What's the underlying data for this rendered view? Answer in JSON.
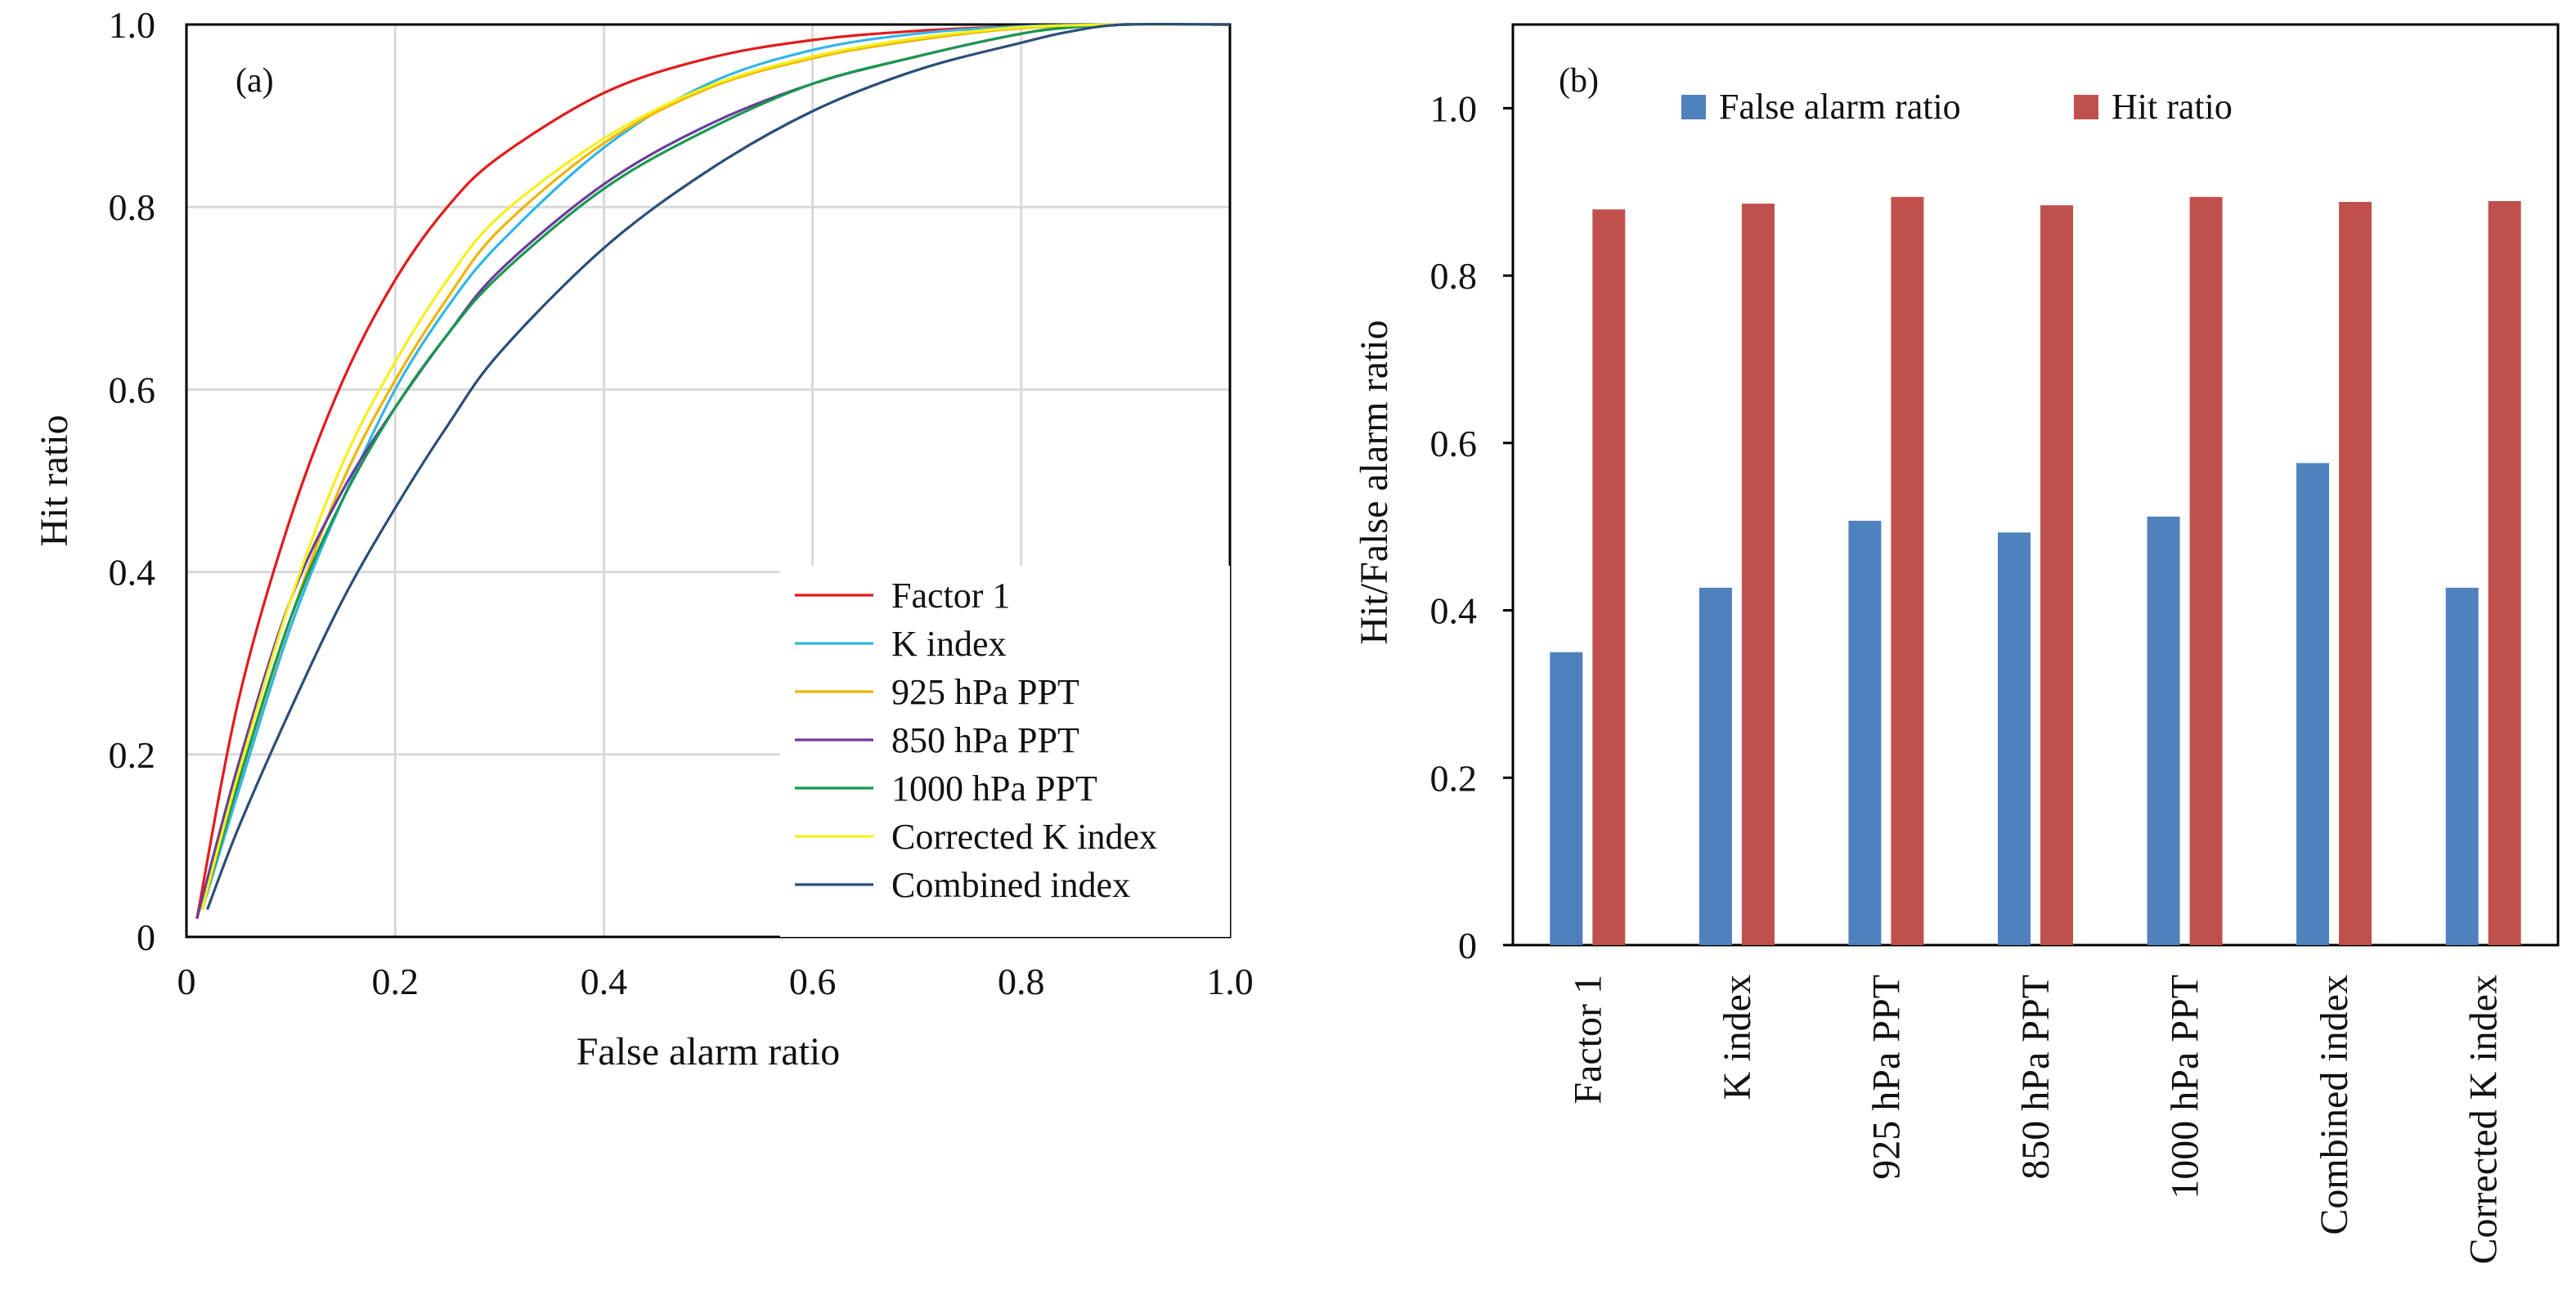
{
  "chart_data": [
    {
      "type": "line",
      "panel_label": "(a)",
      "title": "",
      "xlabel": "False alarm ratio",
      "ylabel": "Hit  ratio",
      "xlim": [
        0,
        1.0
      ],
      "ylim": [
        0,
        1.0
      ],
      "xticks": [
        "0",
        "0.2",
        "0.4",
        "0.6",
        "0.8",
        "1.0"
      ],
      "yticks": [
        "0",
        "0.2",
        "0.4",
        "0.6",
        "0.8",
        "1.0"
      ],
      "grid": true,
      "legend_position": "bottom-right",
      "series": [
        {
          "name": "Factor 1",
          "color": "#e31a1c",
          "x": [
            0.01,
            0.05,
            0.1,
            0.15,
            0.2,
            0.25,
            0.3,
            0.4,
            0.5,
            0.6,
            0.7,
            0.8,
            0.9,
            1.0
          ],
          "y": [
            0.02,
            0.26,
            0.46,
            0.61,
            0.72,
            0.8,
            0.855,
            0.925,
            0.963,
            0.983,
            0.993,
            0.998,
            1.0,
            1.0
          ]
        },
        {
          "name": "K index",
          "color": "#33b5e5",
          "x": [
            0.015,
            0.05,
            0.1,
            0.15,
            0.2,
            0.25,
            0.3,
            0.4,
            0.5,
            0.6,
            0.7,
            0.8,
            0.9,
            1.0
          ],
          "y": [
            0.03,
            0.16,
            0.34,
            0.48,
            0.6,
            0.69,
            0.76,
            0.865,
            0.935,
            0.972,
            0.99,
            0.998,
            1.0,
            1.0
          ]
        },
        {
          "name": "925 hPa PPT",
          "color": "#f0b400",
          "x": [
            0.015,
            0.05,
            0.1,
            0.15,
            0.2,
            0.25,
            0.3,
            0.4,
            0.5,
            0.6,
            0.7,
            0.8,
            0.9,
            1.0
          ],
          "y": [
            0.03,
            0.17,
            0.35,
            0.5,
            0.61,
            0.7,
            0.775,
            0.87,
            0.93,
            0.963,
            0.983,
            0.996,
            1.0,
            1.0
          ]
        },
        {
          "name": "850 hPa PPT",
          "color": "#6a3d9a",
          "x": [
            0.01,
            0.05,
            0.1,
            0.15,
            0.2,
            0.25,
            0.3,
            0.4,
            0.5,
            0.6,
            0.7,
            0.8,
            0.85,
            0.9,
            1.0
          ],
          "y": [
            0.02,
            0.19,
            0.37,
            0.49,
            0.58,
            0.66,
            0.73,
            0.825,
            0.89,
            0.935,
            0.965,
            0.99,
            0.997,
            1.0,
            1.0
          ]
        },
        {
          "name": "1000 hPa PPT",
          "color": "#1a9850",
          "x": [
            0.015,
            0.05,
            0.1,
            0.15,
            0.2,
            0.25,
            0.3,
            0.4,
            0.5,
            0.6,
            0.7,
            0.8,
            0.85,
            0.9,
            1.0
          ],
          "y": [
            0.03,
            0.17,
            0.35,
            0.48,
            0.58,
            0.66,
            0.725,
            0.82,
            0.885,
            0.935,
            0.965,
            0.99,
            0.997,
            1.0,
            1.0
          ]
        },
        {
          "name": "Corrected K index",
          "color": "#f5f01a",
          "x": [
            0.015,
            0.05,
            0.1,
            0.15,
            0.2,
            0.25,
            0.3,
            0.4,
            0.5,
            0.6,
            0.7,
            0.8,
            0.9,
            1.0
          ],
          "y": [
            0.03,
            0.18,
            0.37,
            0.52,
            0.63,
            0.72,
            0.79,
            0.875,
            0.932,
            0.965,
            0.985,
            0.997,
            1.0,
            1.0
          ]
        },
        {
          "name": "Combined index",
          "color": "#2b4e78",
          "x": [
            0.02,
            0.05,
            0.1,
            0.15,
            0.2,
            0.25,
            0.3,
            0.4,
            0.5,
            0.6,
            0.7,
            0.8,
            0.85,
            0.9,
            1.0
          ],
          "y": [
            0.03,
            0.12,
            0.25,
            0.37,
            0.47,
            0.56,
            0.64,
            0.755,
            0.84,
            0.905,
            0.95,
            0.98,
            0.993,
            1.0,
            1.0
          ]
        }
      ]
    },
    {
      "type": "bar",
      "panel_label": "(b)",
      "title": "",
      "xlabel": "",
      "ylabel": "Hit/False alarm  ratio",
      "ylim": [
        0,
        1.1
      ],
      "yticks": [
        "0",
        "0.2",
        "0.4",
        "0.6",
        "0.8",
        "1.0"
      ],
      "grid": false,
      "legend_position": "top",
      "categories": [
        "Factor 1",
        "K index",
        "925 hPa PPT",
        "850 hPa PPT",
        "1000 hPa PPT",
        "Combined index",
        "Corrected K index"
      ],
      "series": [
        {
          "name": "False alarm ratio",
          "color": "#4f81bd",
          "values": [
            0.35,
            0.427,
            0.507,
            0.493,
            0.512,
            0.576,
            0.427
          ]
        },
        {
          "name": "Hit  ratio",
          "color": "#c0504d",
          "values": [
            0.879,
            0.886,
            0.894,
            0.884,
            0.894,
            0.888,
            0.889
          ]
        }
      ]
    }
  ]
}
